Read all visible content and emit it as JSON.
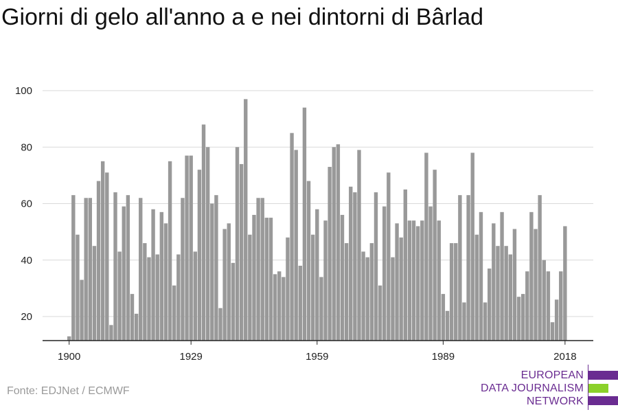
{
  "title": "Giorni di gelo all'anno a e nei dintorni di Bârlad",
  "source": "Fonte: EDJNet / ECMWF",
  "logo": {
    "line1": "EUROPEAN",
    "line2": "DATA JOURNALISM",
    "line3": "NETWORK",
    "colors": {
      "purple": "#6a2c91",
      "green": "#8bd12a"
    }
  },
  "chart_data": {
    "type": "bar",
    "title": "Giorni di gelo all'anno a e nei dintorni di Bârlad",
    "xlabel": "",
    "ylabel": "",
    "x_start": 1900,
    "x_end": 2018,
    "xticks": [
      1900,
      1929,
      1959,
      1989,
      2018
    ],
    "yticks": [
      20,
      40,
      60,
      80,
      100
    ],
    "ylim": [
      11,
      102
    ],
    "bar_color": "#999999",
    "grid": true,
    "values": [
      13,
      63,
      49,
      33,
      62,
      62,
      45,
      68,
      75,
      71,
      17,
      64,
      43,
      59,
      63,
      28,
      21,
      62,
      46,
      41,
      58,
      42,
      57,
      53,
      75,
      31,
      42,
      62,
      77,
      77,
      43,
      72,
      88,
      80,
      60,
      63,
      23,
      51,
      53,
      39,
      80,
      74,
      97,
      49,
      56,
      62,
      62,
      55,
      55,
      35,
      36,
      34,
      48,
      85,
      79,
      38,
      94,
      68,
      49,
      58,
      34,
      54,
      73,
      80,
      81,
      56,
      46,
      66,
      64,
      79,
      43,
      41,
      46,
      64,
      31,
      59,
      71,
      41,
      53,
      48,
      65,
      54,
      54,
      52,
      54,
      78,
      59,
      72,
      54,
      28,
      22,
      46,
      46,
      63,
      25,
      63,
      78,
      49,
      57,
      25,
      37,
      53,
      45,
      57,
      45,
      42,
      51,
      27,
      28,
      36,
      57,
      51,
      63,
      40,
      36,
      18,
      26,
      36,
      52
    ]
  }
}
